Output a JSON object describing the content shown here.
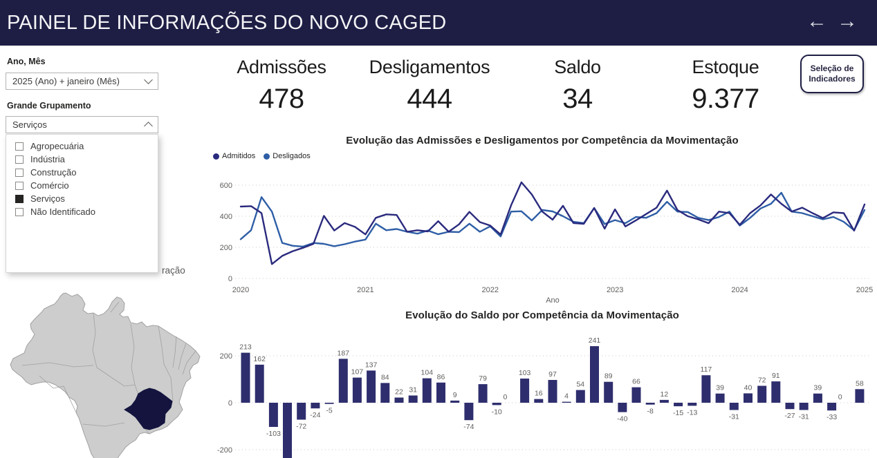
{
  "header": {
    "title": "PAINEL DE INFORMAÇÕES DO NOVO CAGED",
    "nav_back": "←",
    "nav_forward": "→"
  },
  "sidebar": {
    "filter1_label": "Ano, Mês",
    "filter1_value": "2025 (Ano) + janeiro (Mês)",
    "filter2_label": "Grande Grupamento",
    "filter2_value": "Serviços",
    "filter2_options": [
      {
        "label": "Agropecuária",
        "checked": false
      },
      {
        "label": "Indústria",
        "checked": false
      },
      {
        "label": "Construção",
        "checked": false
      },
      {
        "label": "Comércio",
        "checked": false
      },
      {
        "label": "Serviços",
        "checked": true
      },
      {
        "label": "Não Identificado",
        "checked": false
      }
    ],
    "map_title_visible_fragment": "ração"
  },
  "kpis": [
    {
      "label": "Admissões",
      "value": "478"
    },
    {
      "label": "Desligamentos",
      "value": "444"
    },
    {
      "label": "Saldo",
      "value": "34"
    },
    {
      "label": "Estoque",
      "value": "9.377"
    }
  ],
  "indicator_button": {
    "line1": "Seleção de",
    "line2": "Indicadores"
  },
  "colors": {
    "header_bg": "#1e1e45",
    "admitidos_line": "#2a2a7e",
    "desligados_line": "#2e5ea6",
    "bar_fill": "#2e2e6e",
    "grid": "#c9c9c9",
    "axis_text": "#605e5c",
    "label_text": "#605e5c",
    "map_state_fill": "#cdcdcd",
    "map_state_stroke": "#a0a0a0",
    "map_highlight_fill": "#14143f"
  },
  "map": {
    "country": "Brasil",
    "highlighted_state": "Minas Gerais (sudeste, destacado em azul escuro)"
  },
  "chart_data": [
    {
      "type": "line",
      "title": "Evolução das Admissões e Desligamentos por Competência da Movimentação",
      "xlabel": "Ano",
      "x_ticks": [
        "2020",
        "2021",
        "2022",
        "2023",
        "2024",
        "2025"
      ],
      "y_ticks": [
        0,
        200,
        400,
        600
      ],
      "ylim": [
        0,
        650
      ],
      "grid": "dotted",
      "legend_position": "top-left",
      "x_unit": "mês (jan/2020 a jan/2025)",
      "series": [
        {
          "name": "Admitidos",
          "values": [
            462,
            465,
            420,
            92,
            145,
            175,
            197,
            222,
            402,
            308,
            356,
            331,
            283,
            390,
            412,
            408,
            300,
            310,
            302,
            368,
            300,
            348,
            428,
            362,
            340,
            282,
            470,
            618,
            540,
            430,
            378,
            467,
            356,
            351,
            453,
            320,
            444,
            334,
            373,
            414,
            455,
            565,
            440,
            400,
            380,
            355,
            430,
            420,
            345,
            420,
            470,
            540,
            480,
            430,
            455,
            420,
            388,
            425,
            420,
            307,
            476
          ]
        },
        {
          "name": "Desligados",
          "values": [
            252,
            310,
            523,
            430,
            228,
            210,
            205,
            228,
            222,
            207,
            220,
            237,
            250,
            352,
            310,
            318,
            300,
            288,
            308,
            284,
            300,
            298,
            352,
            300,
            335,
            270,
            430,
            432,
            373,
            440,
            431,
            400,
            364,
            356,
            453,
            350,
            375,
            355,
            395,
            390,
            420,
            493,
            430,
            427,
            390,
            375,
            395,
            430,
            340,
            390,
            450,
            480,
            551,
            430,
            420,
            400,
            380,
            395,
            364,
            310,
            440
          ]
        }
      ]
    },
    {
      "type": "bar",
      "title": "Evolução do Saldo por Competência da Movimentação",
      "y_ticks": [
        200,
        0,
        -200
      ],
      "grid": "dotted",
      "note": "quarta barra ultrapassa -200 e é cortada pela borda da imagem (sem rótulo visível)",
      "values": [
        213,
        162,
        -103,
        -240,
        -72,
        -24,
        -5,
        187,
        107,
        137,
        84,
        22,
        31,
        104,
        86,
        9,
        -74,
        79,
        -10,
        0,
        103,
        16,
        97,
        4,
        54,
        241,
        89,
        -40,
        66,
        -8,
        12,
        -15,
        -13,
        117,
        39,
        -31,
        40,
        72,
        91,
        -27,
        -31,
        39,
        -33,
        0,
        58
      ],
      "labels": [
        "213",
        "162",
        "-103",
        "",
        "-72",
        "-24",
        "-5",
        "187",
        "107",
        "137",
        "84",
        "22",
        "31",
        "104",
        "86",
        "9",
        "-74",
        "79",
        "-10",
        "0",
        "103",
        "16",
        "97",
        "4",
        "54",
        "241",
        "89",
        "-40",
        "66",
        "-8",
        "12",
        "-15",
        "-13",
        "117",
        "39",
        "-31",
        "40",
        "72",
        "91",
        "-27",
        "-31",
        "39",
        "-33",
        "0",
        "58"
      ]
    }
  ]
}
